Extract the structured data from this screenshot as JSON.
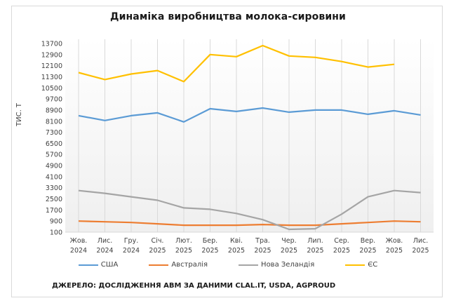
{
  "chart_data": {
    "type": "line",
    "title": "Динаміка виробництва  молока-сировини",
    "xlabel": "",
    "ylabel": "ТИС. Т",
    "ylim": [
      100,
      13700
    ],
    "yticks": [
      100,
      900,
      1700,
      2500,
      3300,
      4100,
      4900,
      5700,
      6500,
      7300,
      8100,
      8900,
      9700,
      10500,
      11300,
      12100,
      12900,
      13700
    ],
    "categories": [
      [
        "Жов.",
        "2024"
      ],
      [
        "Лис.",
        "2024"
      ],
      [
        "Гру.",
        "2024"
      ],
      [
        "Січ.",
        "2025"
      ],
      [
        "Лют.",
        "2025"
      ],
      [
        "Бер.",
        "2025"
      ],
      [
        "Кві.",
        "2025"
      ],
      [
        "Тра.",
        "2025"
      ],
      [
        "Чер.",
        "2025"
      ],
      [
        "Лип.",
        "2025"
      ],
      [
        "Сер.",
        "2025"
      ],
      [
        "Вер.",
        "2025"
      ],
      [
        "Жов.",
        "2025"
      ],
      [
        "Лис.",
        "2025"
      ]
    ],
    "grid": "vertical",
    "legend_position": "bottom",
    "series": [
      {
        "name": "США",
        "color": "#5b9bd5",
        "values": [
          8500,
          8150,
          8500,
          8700,
          8050,
          9000,
          8800,
          9050,
          8750,
          8900,
          8900,
          8600,
          8850,
          8550
        ]
      },
      {
        "name": "Австралія",
        "color": "#ed7d31",
        "values": [
          900,
          850,
          800,
          700,
          600,
          600,
          600,
          650,
          600,
          600,
          700,
          800,
          900,
          850
        ]
      },
      {
        "name": "Нова Зеландія",
        "color": "#a5a5a5",
        "values": [
          3100,
          2900,
          2650,
          2400,
          1850,
          1750,
          1450,
          1000,
          300,
          350,
          1400,
          2650,
          3100,
          2950
        ]
      },
      {
        "name": "ЄС",
        "color": "#ffc000",
        "values": [
          11600,
          11100,
          11500,
          11750,
          10950,
          12900,
          12750,
          13550,
          12800,
          12700,
          12400,
          12000,
          12200,
          null
        ]
      }
    ]
  },
  "source": "ДЖЕРЕЛО: ДОСЛІДЖЕННЯ АВМ ЗА ДАНИМИ CLAL.IT, USDA, AGPROUD"
}
